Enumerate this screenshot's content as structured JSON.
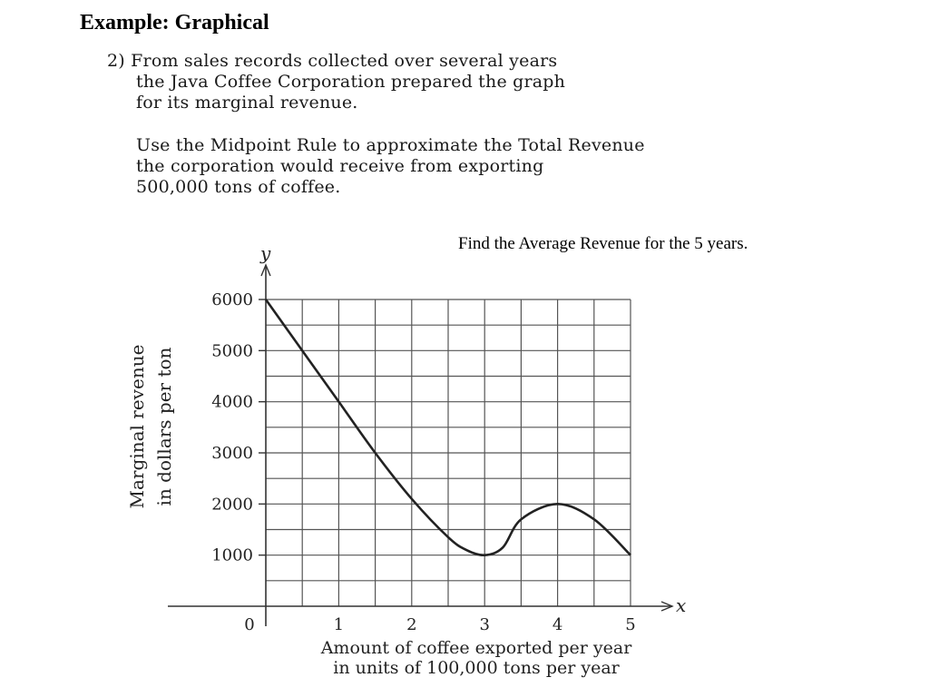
{
  "slide_title": "Example: Graphical",
  "problem": {
    "number": "2)",
    "para1_lines": [
      "From sales records collected over several years",
      "the Java Coffee Corporation prepared the graph",
      "for its marginal revenue."
    ],
    "para2_lines": [
      "Use the Midpoint Rule to approximate the Total Revenue",
      "the corporation would receive from exporting",
      "500,000 tons of coffee."
    ]
  },
  "side_note": "Find the Average Revenue for the 5 years.",
  "chart_data": {
    "type": "line",
    "x_axis_symbol": "x",
    "y_axis_symbol": "y",
    "xlabel_lines": [
      "Amount of coffee exported per year",
      "in units of 100,000 tons per year"
    ],
    "ylabel_lines": [
      "Marginal revenue",
      "in dollars per ton"
    ],
    "x_ticks": [
      1,
      2,
      3,
      4,
      5
    ],
    "origin_label": "0",
    "y_ticks": [
      1000,
      2000,
      3000,
      4000,
      5000,
      6000
    ],
    "xlim": [
      0,
      5
    ],
    "ylim": [
      0,
      6000
    ],
    "grid": true,
    "grid_step_x": 0.5,
    "grid_step_y": 500,
    "series": [
      {
        "x": [
          0,
          0.5,
          1,
          1.5,
          2,
          2.5,
          2.75,
          3,
          3.25,
          3.5,
          4,
          4.5,
          5
        ],
        "y": [
          6000,
          5000,
          4000,
          3000,
          2100,
          1350,
          1100,
          1000,
          1150,
          1700,
          2000,
          1700,
          1000
        ]
      }
    ]
  }
}
